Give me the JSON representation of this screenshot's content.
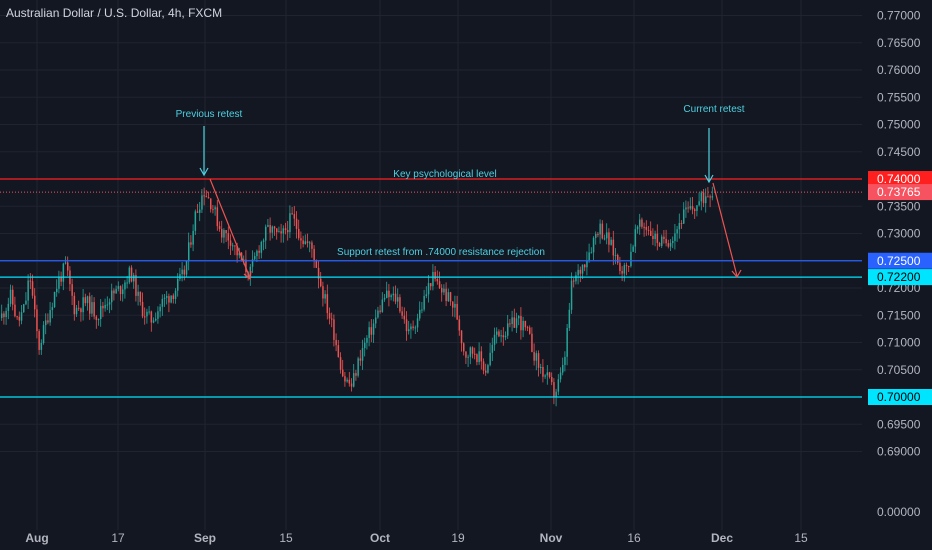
{
  "header": {
    "title": "Australian Dollar / U.S. Dollar, 4h, FXCM"
  },
  "colors": {
    "background": "#131722",
    "grid": "#1f2430",
    "text": "#b2b5be",
    "up": "#26a69a",
    "down": "#ef5350",
    "cyan": "#00e5ff",
    "blue": "#2962ff",
    "red": "#ff1f1f",
    "annotation": "#4dd0e1"
  },
  "chart_data": {
    "type": "candlestick",
    "title": "Australian Dollar / U.S. Dollar, 4h, FXCM",
    "y_axis": {
      "position": "right",
      "ylim": [
        0.685,
        0.7725
      ],
      "ticks": [
        "0.77000",
        "0.76500",
        "0.76000",
        "0.75500",
        "0.75000",
        "0.74500",
        "0.74000",
        "0.73500",
        "0.73000",
        "0.72500",
        "0.72000",
        "0.71500",
        "0.71000",
        "0.70500",
        "0.70000",
        "0.69500",
        "0.69000"
      ],
      "bottom_tick": "0.00000"
    },
    "x_axis": {
      "ticks": [
        {
          "label": "Aug",
          "bold": true
        },
        {
          "label": "17",
          "bold": false
        },
        {
          "label": "Sep",
          "bold": true
        },
        {
          "label": "15",
          "bold": false
        },
        {
          "label": "Oct",
          "bold": true
        },
        {
          "label": "19",
          "bold": false
        },
        {
          "label": "Nov",
          "bold": true
        },
        {
          "label": "16",
          "bold": false
        },
        {
          "label": "Dec",
          "bold": true
        },
        {
          "label": "15",
          "bold": false
        }
      ]
    },
    "price_path": [
      {
        "t": 0,
        "p": 0.7145
      },
      {
        "t": 10,
        "p": 0.7185
      },
      {
        "t": 17,
        "p": 0.7135
      },
      {
        "t": 24,
        "p": 0.7165
      },
      {
        "t": 29,
        "p": 0.7225
      },
      {
        "t": 38,
        "p": 0.709
      },
      {
        "t": 48,
        "p": 0.7155
      },
      {
        "t": 57,
        "p": 0.721
      },
      {
        "t": 65,
        "p": 0.724
      },
      {
        "t": 74,
        "p": 0.716
      },
      {
        "t": 85,
        "p": 0.7175
      },
      {
        "t": 97,
        "p": 0.715
      },
      {
        "t": 107,
        "p": 0.718
      },
      {
        "t": 120,
        "p": 0.72
      },
      {
        "t": 130,
        "p": 0.723
      },
      {
        "t": 140,
        "p": 0.7165
      },
      {
        "t": 150,
        "p": 0.714
      },
      {
        "t": 162,
        "p": 0.7175
      },
      {
        "t": 174,
        "p": 0.7195
      },
      {
        "t": 184,
        "p": 0.723
      },
      {
        "t": 194,
        "p": 0.733
      },
      {
        "t": 203,
        "p": 0.738
      },
      {
        "t": 211,
        "p": 0.7355
      },
      {
        "t": 220,
        "p": 0.7305
      },
      {
        "t": 230,
        "p": 0.729
      },
      {
        "t": 240,
        "p": 0.725
      },
      {
        "t": 249,
        "p": 0.7225
      },
      {
        "t": 258,
        "p": 0.7275
      },
      {
        "t": 268,
        "p": 0.731
      },
      {
        "t": 280,
        "p": 0.729
      },
      {
        "t": 291,
        "p": 0.733
      },
      {
        "t": 302,
        "p": 0.729
      },
      {
        "t": 312,
        "p": 0.727
      },
      {
        "t": 321,
        "p": 0.72
      },
      {
        "t": 333,
        "p": 0.712
      },
      {
        "t": 343,
        "p": 0.7035
      },
      {
        "t": 351,
        "p": 0.702
      },
      {
        "t": 360,
        "p": 0.708
      },
      {
        "t": 372,
        "p": 0.713
      },
      {
        "t": 384,
        "p": 0.7185
      },
      {
        "t": 397,
        "p": 0.718
      },
      {
        "t": 408,
        "p": 0.7115
      },
      {
        "t": 420,
        "p": 0.716
      },
      {
        "t": 431,
        "p": 0.722
      },
      {
        "t": 442,
        "p": 0.7195
      },
      {
        "t": 455,
        "p": 0.716
      },
      {
        "t": 464,
        "p": 0.708
      },
      {
        "t": 474,
        "p": 0.7085
      },
      {
        "t": 485,
        "p": 0.705
      },
      {
        "t": 496,
        "p": 0.712
      },
      {
        "t": 506,
        "p": 0.712
      },
      {
        "t": 517,
        "p": 0.7145
      },
      {
        "t": 527,
        "p": 0.7115
      },
      {
        "t": 537,
        "p": 0.706
      },
      {
        "t": 546,
        "p": 0.7035
      },
      {
        "t": 554,
        "p": 0.7005
      },
      {
        "t": 563,
        "p": 0.7055
      },
      {
        "t": 571,
        "p": 0.7205
      },
      {
        "t": 580,
        "p": 0.7235
      },
      {
        "t": 590,
        "p": 0.7275
      },
      {
        "t": 598,
        "p": 0.7315
      },
      {
        "t": 608,
        "p": 0.7285
      },
      {
        "t": 618,
        "p": 0.7245
      },
      {
        "t": 625,
        "p": 0.723
      },
      {
        "t": 636,
        "p": 0.731
      },
      {
        "t": 645,
        "p": 0.7315
      },
      {
        "t": 655,
        "p": 0.729
      },
      {
        "t": 663,
        "p": 0.728
      },
      {
        "t": 673,
        "p": 0.73
      },
      {
        "t": 683,
        "p": 0.7335
      },
      {
        "t": 692,
        "p": 0.7345
      },
      {
        "t": 700,
        "p": 0.736
      },
      {
        "t": 709,
        "p": 0.738
      },
      {
        "t": 712,
        "p": 0.73765
      }
    ],
    "horizontal_levels": [
      {
        "value": 0.74,
        "label": "0.74000",
        "color": "#ff1f1f",
        "badge": "#ff1f1f",
        "name": "level-74000"
      },
      {
        "value": 0.7376,
        "label": "0.73765",
        "color": "#f7525f",
        "badge": "#f7525f",
        "name": "current-price",
        "dotted": true
      },
      {
        "value": 0.725,
        "label": "0.72500",
        "color": "#2962ff",
        "badge": "#2962ff",
        "name": "level-72500"
      },
      {
        "value": 0.722,
        "label": "0.72200",
        "color": "#00e5ff",
        "badge": "#00e5ff",
        "name": "level-72200"
      },
      {
        "value": 0.7,
        "label": "0.70000",
        "color": "#00e5ff",
        "badge": "#00e5ff",
        "name": "level-70000"
      }
    ],
    "annotations": {
      "previous_retest": "Previous retest",
      "current_retest": "Current retest",
      "key_level": "Key psychological level",
      "support_retest": "Support retest from .74000 resistance rejection"
    }
  }
}
